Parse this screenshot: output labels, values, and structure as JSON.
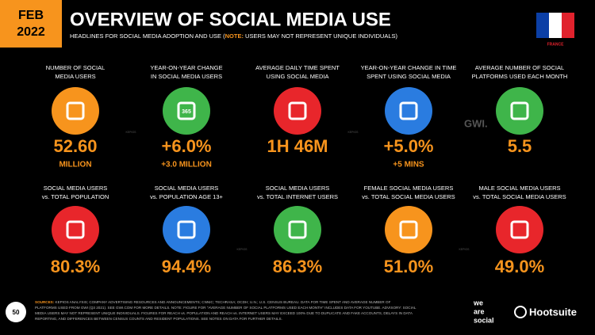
{
  "header": {
    "month": "FEB",
    "year": "2022",
    "title": "OVERVIEW OF SOCIAL MEDIA USE",
    "subtitle_start": "HEADLINES FOR SOCIAL MEDIA ADOPTION AND USE (",
    "subtitle_note": "NOTE:",
    "subtitle_end": " USERS MAY NOT REPRESENT UNIQUE INDIVIDUALS)",
    "country": "FRANCE"
  },
  "tiles": [
    {
      "label": [
        "NUMBER OF SOCIAL",
        "MEDIA USERS"
      ],
      "value": "52.60",
      "sub": "MILLION"
    },
    {
      "label": [
        "YEAR-ON-YEAR CHANGE",
        "IN SOCIAL MEDIA USERS"
      ],
      "value": "+6.0%",
      "sub": "+3.0 MILLION",
      "icon_text": "365"
    },
    {
      "label": [
        "AVERAGE DAILY TIME SPENT",
        "USING SOCIAL MEDIA"
      ],
      "value": "1H 46M"
    },
    {
      "label": [
        "YEAR-ON-YEAR CHANGE IN TIME",
        "SPENT USING SOCIAL MEDIA"
      ],
      "value": "+5.0%",
      "sub": "+5 MINS"
    },
    {
      "label": [
        "AVERAGE NUMBER OF SOCIAL",
        "PLATFORMS USED EACH MONTH"
      ],
      "value": "5.5"
    },
    {
      "label": [
        "SOCIAL MEDIA USERS",
        "vs. TOTAL POPULATION"
      ],
      "value": "80.3%"
    },
    {
      "label": [
        "SOCIAL MEDIA USERS",
        "vs. POPULATION AGE 13+"
      ],
      "value": "94.4%"
    },
    {
      "label": [
        "SOCIAL MEDIA USERS",
        "vs. TOTAL INTERNET USERS"
      ],
      "value": "86.3%"
    },
    {
      "label": [
        "FEMALE SOCIAL MEDIA USERS",
        "vs. TOTAL SOCIAL MEDIA USERS"
      ],
      "value": "51.0%"
    },
    {
      "label": [
        "MALE SOCIAL MEDIA USERS",
        "vs. TOTAL SOCIAL MEDIA USERS"
      ],
      "value": "49.0%"
    }
  ],
  "watermarks": {
    "kepios": "KEPIOS",
    "gwi": "GWI."
  },
  "footer": {
    "page": "50",
    "sources": [
      "SOURCES:",
      " KEPIOS ANALYSIS; COMPANY ADVERTISING RESOURCES AND ANNOUNCEMENTS; CNNIC; TECHRASA; OCDH; U.N.; U.S. CENSUS BUREAU. DATA FOR TIME SPENT AND AVERAGE NUMBER OF",
      "PLATFORMS USED FROM GWI (Q3 2021). SEE GWI.COM FOR MORE DETAILS. NOTE: FIGURE FOR \"AVERAGE NUMBER OF SOCIAL PLATFORMS USED EACH MONTH\" INCLUDES DATA FOR YOUTUBE. ADVISORY: SOCIAL",
      "MEDIA USERS MAY NOT REPRESENT UNIQUE INDIVIDUALS. FIGURES FOR REACH vs. POPULATION AND REACH vs. INTERNET USERS MAY EXCEED 100% DUE TO DUPLICATE AND FAKE ACCOUNTS, DELAYS IN DATA",
      "REPORTING, AND DIFFERENCES BETWEEN CENSUS COUNTS AND RESIDENT POPULATIONS. SEE NOTES ON DATA FOR FURTHER DETAILS."
    ],
    "brand1": [
      "we",
      "are",
      "social"
    ],
    "brand2": "Hootsuite"
  }
}
